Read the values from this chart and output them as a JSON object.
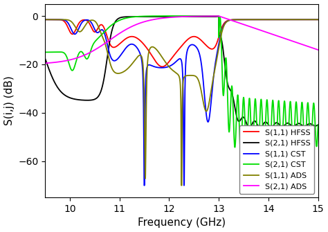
{
  "xlabel": "Frequency (GHz)",
  "ylabel": "S(i,j) (dB)",
  "xlim": [
    9.5,
    15.0
  ],
  "ylim": [
    -75,
    5
  ],
  "yticks": [
    0,
    -20,
    -40,
    -60
  ],
  "xticks": [
    10,
    11,
    12,
    13,
    14,
    15
  ],
  "colors": {
    "S11_HFSS": "#ff0000",
    "S21_HFSS": "#000000",
    "S11_CST": "#0000ff",
    "S21_CST": "#00dd00",
    "S11_ADS": "#808000",
    "S21_ADS": "#ff00ff"
  },
  "legend_labels": [
    "S(1,1) HFSS",
    "S(2,1) HFSS",
    "S(1,1) CST",
    "S(2,1) CST",
    "S(1,1) ADS",
    "S(2,1) ADS"
  ]
}
